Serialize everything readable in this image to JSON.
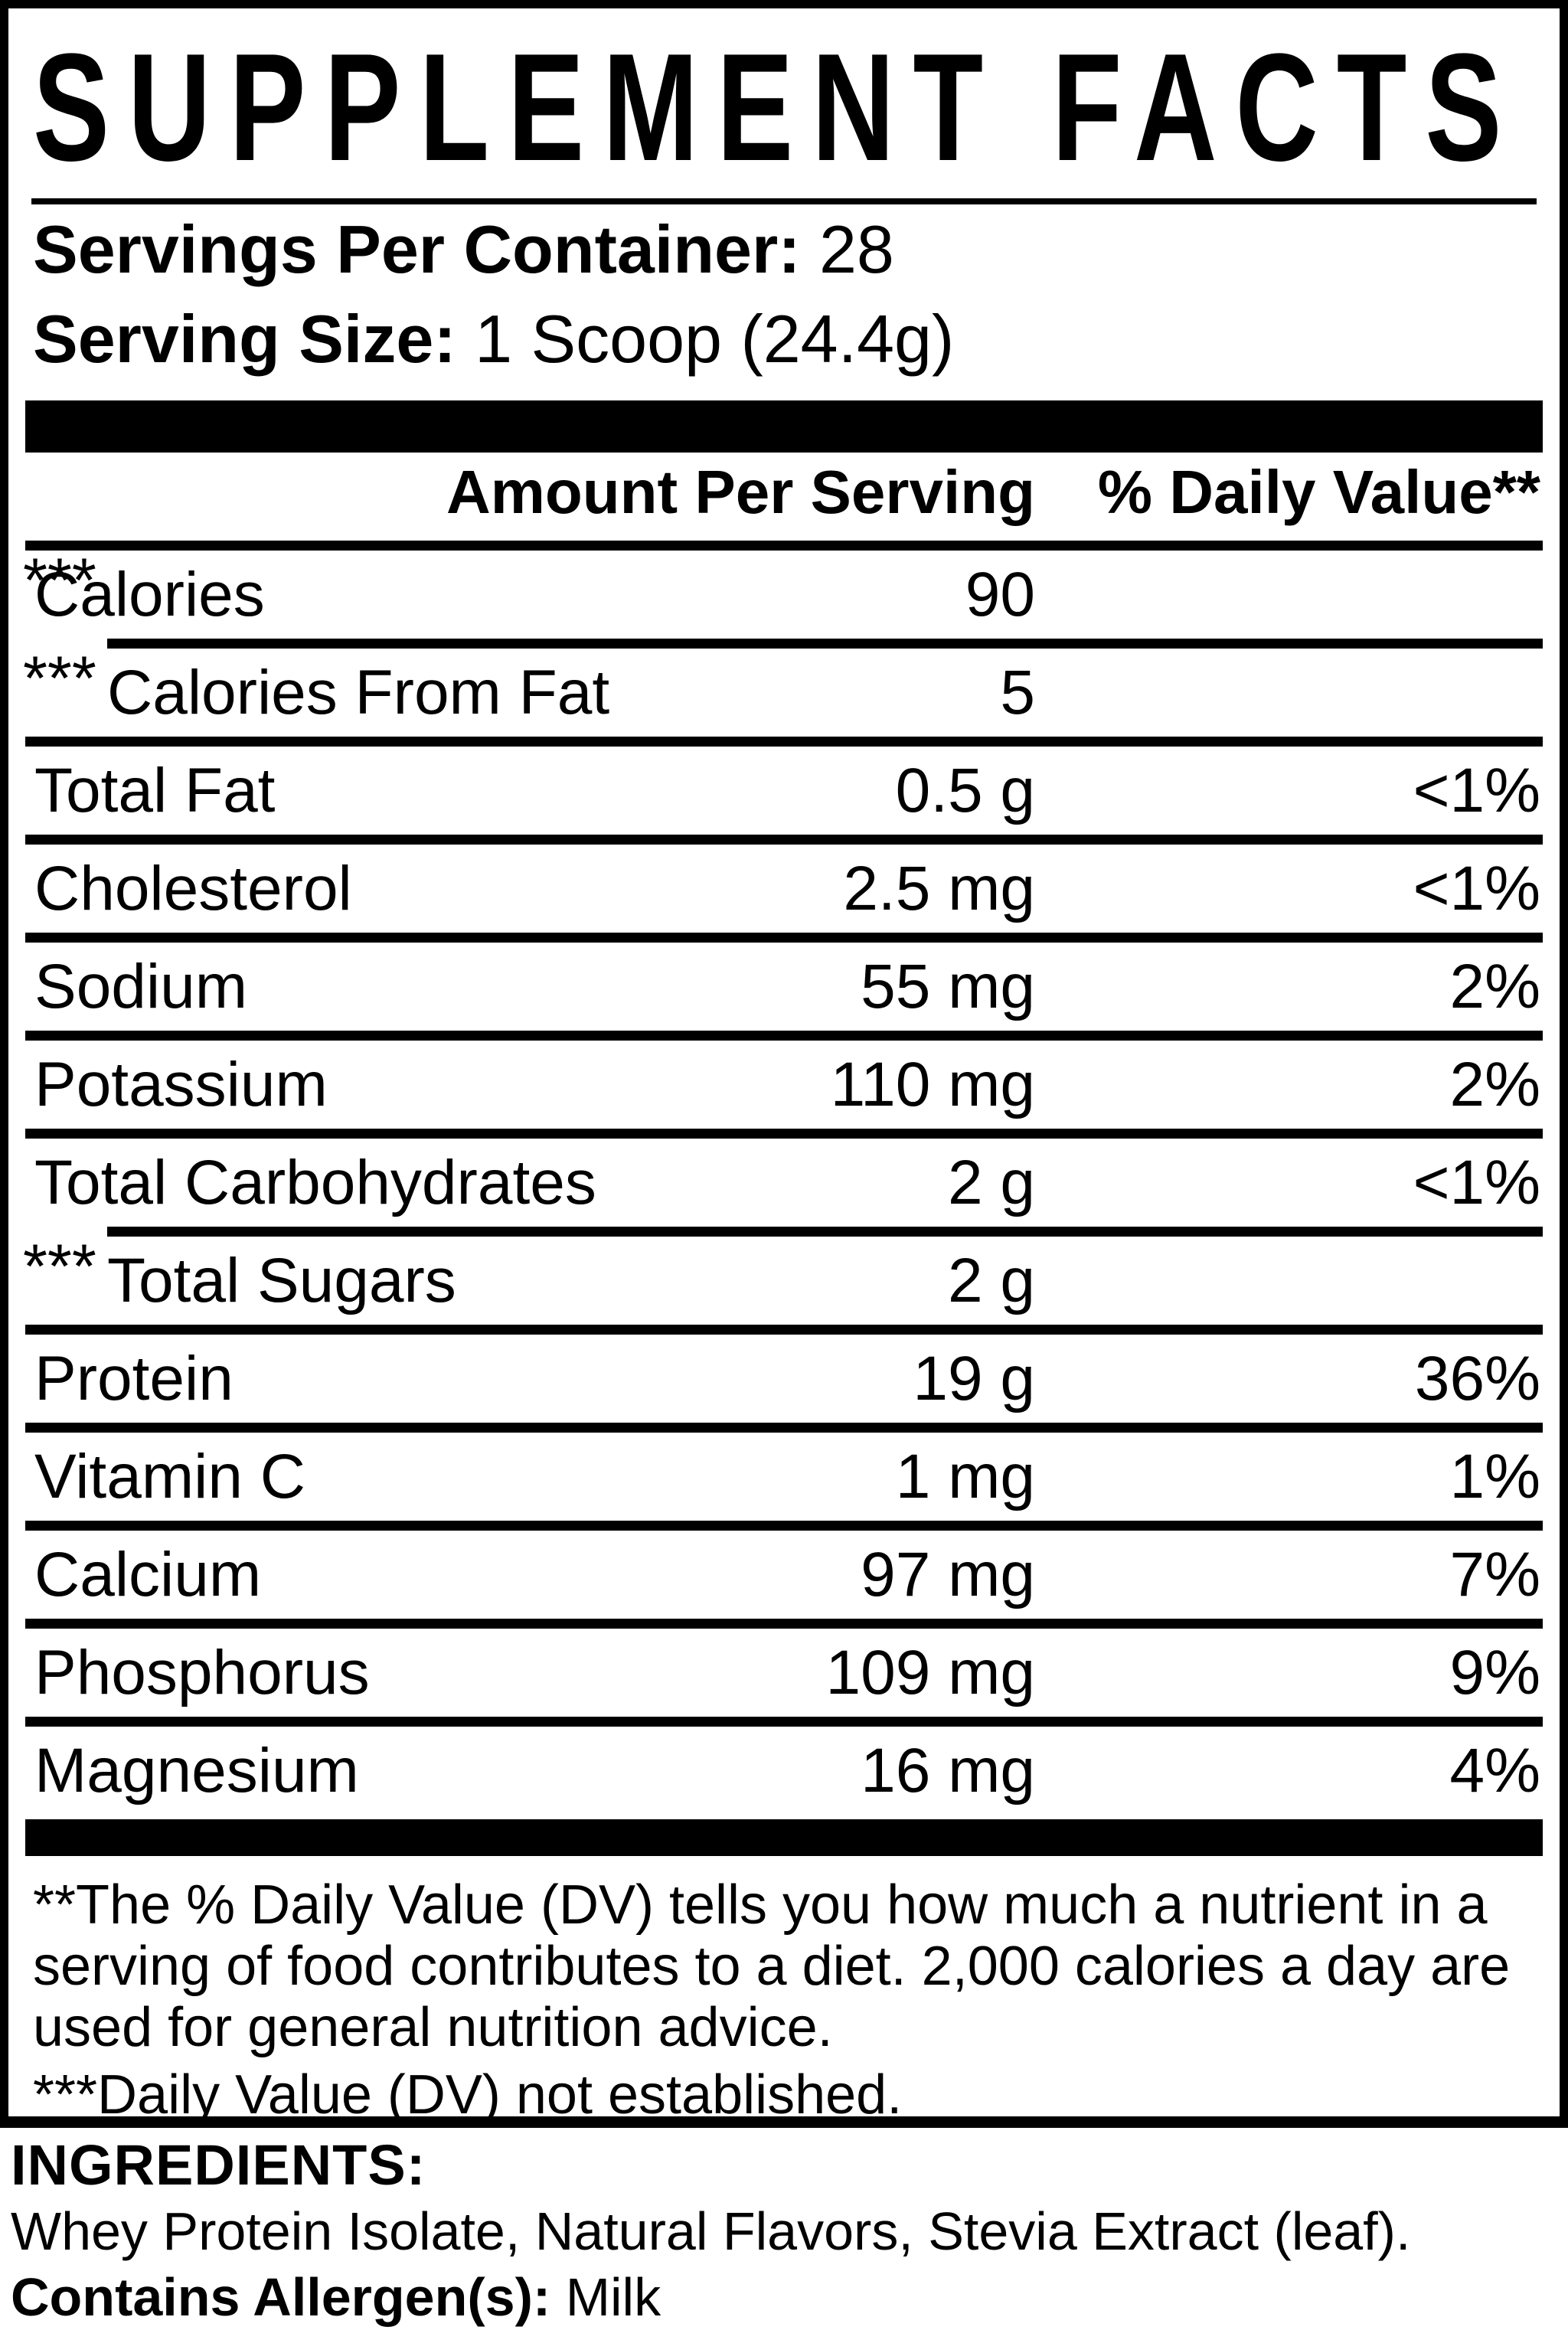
{
  "label": {
    "title": "SUPPLEMENT FACTS",
    "servings_per_container_label": "Servings Per Container:",
    "servings_per_container_value": "28",
    "serving_size_label": "Serving Size:",
    "serving_size_value": "1 Scoop (24.4g)",
    "columns": {
      "amount": "Amount Per Serving",
      "daily_value": "% Daily Value**"
    },
    "rows": [
      {
        "name": "Calories",
        "amount": "90",
        "daily_value": "***",
        "indent": false
      },
      {
        "name": "Calories From Fat",
        "amount": "5",
        "daily_value": "***",
        "indent": true
      },
      {
        "name": "Total Fat",
        "amount": "0.5 g",
        "daily_value": "<1%",
        "indent": false
      },
      {
        "name": "Cholesterol",
        "amount": "2.5 mg",
        "daily_value": "<1%",
        "indent": false
      },
      {
        "name": "Sodium",
        "amount": "55 mg",
        "daily_value": "2%",
        "indent": false
      },
      {
        "name": "Potassium",
        "amount": "110 mg",
        "daily_value": "2%",
        "indent": false
      },
      {
        "name": "Total Carbohydrates",
        "amount": "2 g",
        "daily_value": "<1%",
        "indent": false
      },
      {
        "name": "Total Sugars",
        "amount": "2 g",
        "daily_value": "***",
        "indent": true
      },
      {
        "name": "Protein",
        "amount": "19 g",
        "daily_value": "36%",
        "indent": false
      },
      {
        "name": "Vitamin C",
        "amount": "1 mg",
        "daily_value": "1%",
        "indent": false
      },
      {
        "name": "Calcium",
        "amount": "97 mg",
        "daily_value": "7%",
        "indent": false
      },
      {
        "name": "Phosphorus",
        "amount": "109 mg",
        "daily_value": "9%",
        "indent": false
      },
      {
        "name": "Magnesium",
        "amount": "16 mg",
        "daily_value": "4%",
        "indent": false
      }
    ],
    "footnote_lines": [
      "**The % Daily Value (DV) tells you how much a nutrient in a",
      "serving of food contributes to a diet. 2,000 calories a day are",
      "used for general nutrition advice."
    ],
    "footnote2": "***Daily Value (DV) not established."
  },
  "ingredients": {
    "heading": "INGREDIENTS:",
    "list": "Whey Protein Isolate, Natural Flavors, Stevia Extract (leaf).",
    "allergen_label": "Contains Allergen(s):",
    "allergen_value": "Milk"
  },
  "colors": {
    "ink": "#000000",
    "paper": "#ffffff"
  }
}
